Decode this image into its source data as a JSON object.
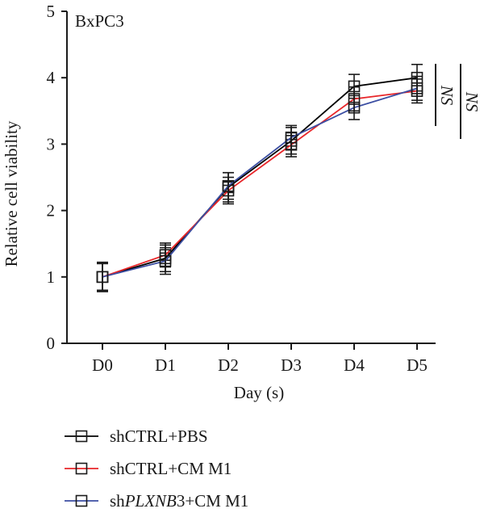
{
  "chart_data": {
    "type": "line",
    "panel_label": "BxPC3",
    "xlabel": "Day (s)",
    "ylabel": "Relative cell viability",
    "categories": [
      "D0",
      "D1",
      "D2",
      "D3",
      "D4",
      "D5"
    ],
    "ylim": [
      0,
      5
    ],
    "yticks": [
      "0",
      "1",
      "2",
      "3",
      "4",
      "5"
    ],
    "grid": false,
    "legend_position": "bottom-left",
    "series": [
      {
        "name": "shCTRL+PBS",
        "color": "#000000",
        "values": [
          1.0,
          1.28,
          2.35,
          3.05,
          3.87,
          4.0
        ],
        "errors": [
          0.22,
          0.2,
          0.22,
          0.2,
          0.18,
          0.2
        ]
      },
      {
        "name": "shCTRL+CM M1",
        "color": "#e8262a",
        "values": [
          1.0,
          1.33,
          2.3,
          2.99,
          3.68,
          3.8
        ],
        "errors": [
          0.2,
          0.18,
          0.2,
          0.18,
          0.18,
          0.18
        ]
      },
      {
        "name": "shPLXNB3+CM M1",
        "color": "#3b4ea2",
        "values": [
          1.0,
          1.24,
          2.37,
          3.1,
          3.55,
          3.84
        ],
        "errors": [
          0.22,
          0.2,
          0.2,
          0.18,
          0.18,
          0.18
        ]
      }
    ],
    "legend": [
      {
        "prefix": "shCTRL+PBS",
        "italic": "",
        "suffix": ""
      },
      {
        "prefix": "shCTRL+CM M1",
        "italic": "",
        "suffix": ""
      },
      {
        "prefix": "sh",
        "italic": "PLXNB",
        "suffix": "3+CM M1"
      }
    ],
    "annotations": [
      "NS",
      "NS"
    ]
  }
}
